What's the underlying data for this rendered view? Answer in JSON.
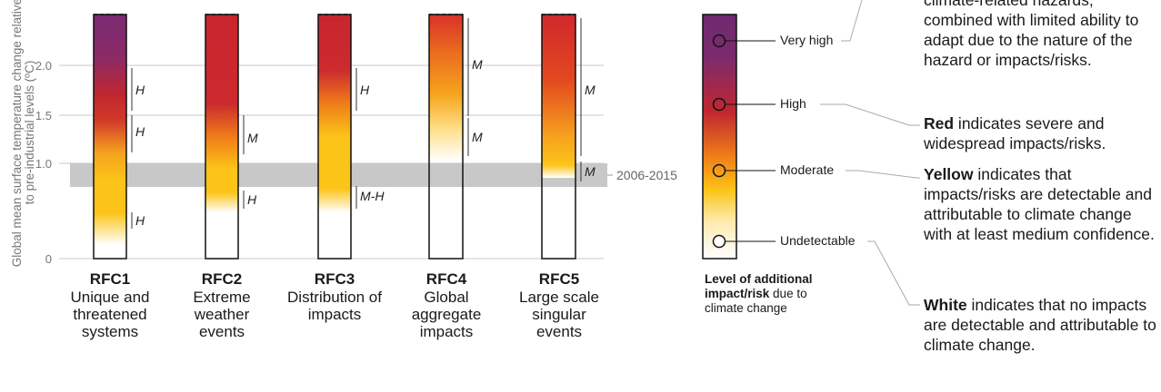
{
  "chart_data": {
    "type": "bar",
    "ylabel": "Global mean surface temperature change relative to pre-industrial levels (ºC)",
    "y_ticks": [
      "0",
      "1.0",
      "1.5",
      "2.0"
    ],
    "reference_band": {
      "label": "2006-2015",
      "range": [
        0.87,
        1.1
      ]
    },
    "categories": [
      {
        "code": "RFC1",
        "name": "Unique and threatened systems"
      },
      {
        "code": "RFC2",
        "name": "Extreme weather events"
      },
      {
        "code": "RFC3",
        "name": "Distribution of impacts"
      },
      {
        "code": "RFC4",
        "name": "Global aggregate impacts"
      },
      {
        "code": "RFC5",
        "name": "Large scale singular events"
      }
    ],
    "transitions": [
      {
        "rfc": "RFC1",
        "confidence": [
          "H",
          "H",
          "H"
        ]
      },
      {
        "rfc": "RFC2",
        "confidence": [
          "H",
          "M"
        ]
      },
      {
        "rfc": "RFC3",
        "confidence": [
          "M-H",
          "H"
        ]
      },
      {
        "rfc": "RFC4",
        "confidence": [
          "M",
          "M"
        ]
      },
      {
        "rfc": "RFC5",
        "confidence": [
          "M",
          "M"
        ]
      }
    ]
  },
  "legend": {
    "title_bold": "Level of additional impact/risk",
    "title_rest": " due to climate change",
    "levels": [
      "Very high",
      "High",
      "Moderate",
      "Undetectable"
    ]
  },
  "descriptions": {
    "purple": {
      "text": "climate-related hazards, combined with limited ability to adapt due to the nature of the hazard or impacts/risks."
    },
    "red": {
      "bold": "Red",
      "text": " indicates severe and widespread impacts/risks."
    },
    "yellow": {
      "bold": "Yellow",
      "text": " indicates that impacts/risks are detectable and attributable to climate change with at least medium confidence."
    },
    "white": {
      "bold": "White",
      "text": " indicates that no impacts are detectable and attributable to climate change."
    }
  },
  "colors": {
    "purple": "#7a2a72",
    "red": "#c8252f",
    "orange": "#ef7d1a",
    "yellow": "#fcc418",
    "band": "#c8c8c8"
  }
}
